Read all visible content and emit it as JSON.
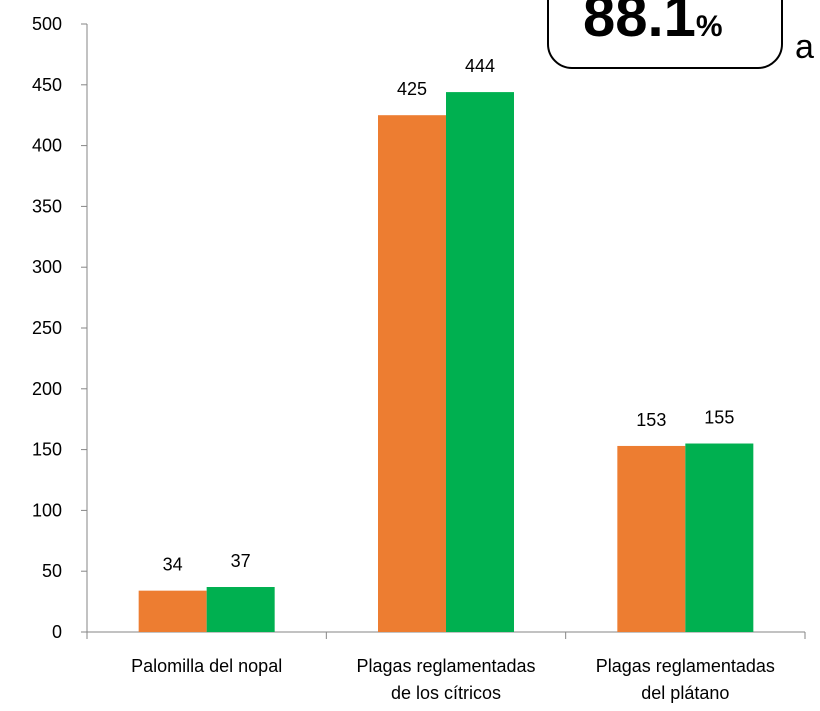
{
  "chart_data": {
    "type": "bar",
    "categories": [
      [
        "Palomilla del nopal"
      ],
      [
        "Plagas reglamentadas",
        "de los cítricos"
      ],
      [
        "Plagas reglamentadas",
        "del plátano"
      ]
    ],
    "series": [
      {
        "color": "#ed7d31",
        "values": [
          34,
          425,
          153
        ]
      },
      {
        "color": "#00b050",
        "values": [
          37,
          444,
          155
        ]
      }
    ],
    "ylim": [
      0,
      500
    ],
    "yticks": [
      0,
      50,
      100,
      150,
      200,
      250,
      300,
      350,
      400,
      450,
      500
    ],
    "annotations": [
      {
        "parts": [
          "88.1",
          "%"
        ]
      },
      {
        "parts": [
          "a"
        ]
      }
    ]
  }
}
